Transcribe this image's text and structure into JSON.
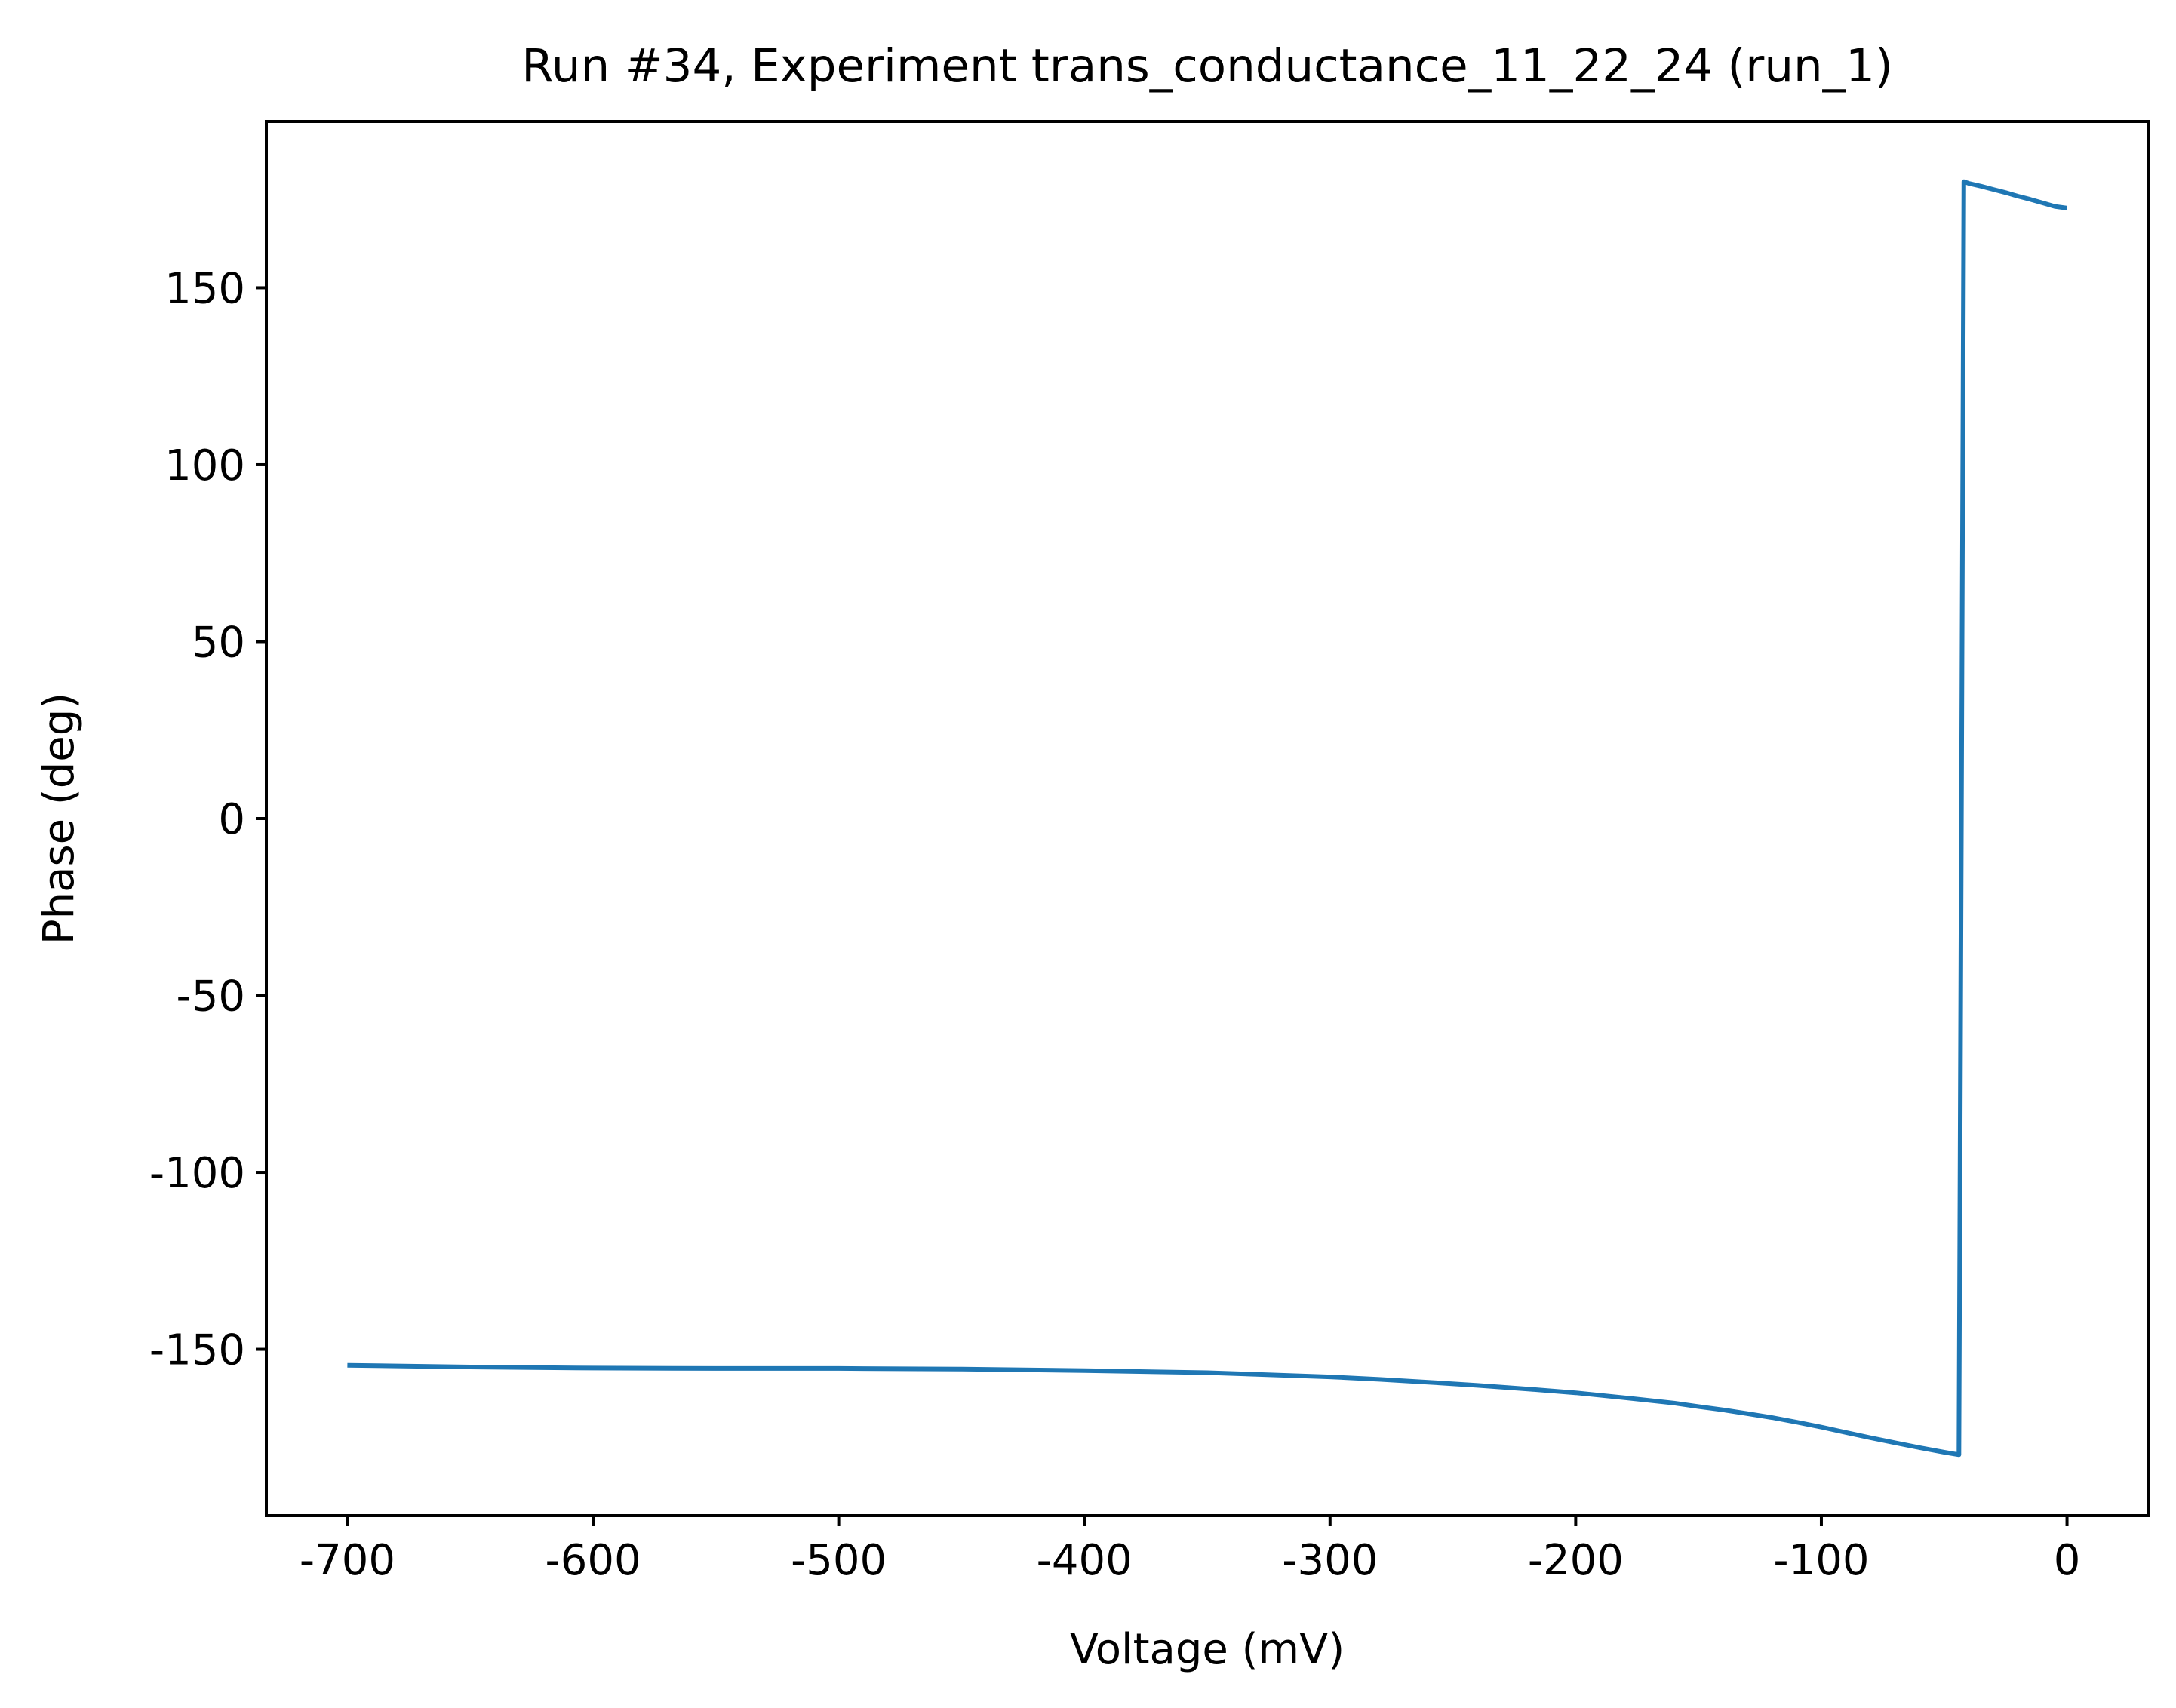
{
  "chart_data": {
    "type": "line",
    "title": "Run #34, Experiment trans_conductance_11_22_24 (run_1)",
    "xlabel": "Voltage (mV)",
    "ylabel": "Phase (deg)",
    "xlim": [
      -733,
      33
    ],
    "ylim": [
      -197,
      197
    ],
    "x_ticks": [
      -700,
      -600,
      -500,
      -400,
      -300,
      -200,
      -100,
      0
    ],
    "x_tick_labels": [
      "-700",
      "-600",
      "-500",
      "-400",
      "-300",
      "-200",
      "-100",
      "0"
    ],
    "y_ticks": [
      150,
      100,
      50,
      0,
      -50,
      -100,
      -150
    ],
    "y_tick_labels": [
      "150",
      "100",
      "50",
      "0",
      "-50",
      "-100",
      "-150"
    ],
    "grid": false,
    "series": [
      {
        "color": "#1f77b4",
        "x": [
          -700,
          -650,
          -600,
          -550,
          -500,
          -450,
          -400,
          -350,
          -300,
          -280,
          -260,
          -240,
          -220,
          -200,
          -180,
          -160,
          -150,
          -140,
          -130,
          -120,
          -110,
          -100,
          -90,
          -80,
          -70,
          -60,
          -50,
          -44,
          -43,
          -42,
          -40,
          -35,
          -30,
          -25,
          -20,
          -15,
          -10,
          -5,
          0
        ],
        "y": [
          -154.5,
          -155,
          -155.3,
          -155.4,
          -155.4,
          -155.6,
          -156,
          -156.6,
          -157.8,
          -158.5,
          -159.3,
          -160.2,
          -161.2,
          -162.3,
          -163.7,
          -165.2,
          -166.2,
          -167.1,
          -168.2,
          -169.3,
          -170.6,
          -172,
          -173.5,
          -175,
          -176.4,
          -177.8,
          -179.1,
          -179.8,
          0,
          180,
          179.5,
          178.7,
          177.8,
          176.9,
          175.9,
          175,
          174,
          173,
          172.5
        ]
      }
    ]
  }
}
